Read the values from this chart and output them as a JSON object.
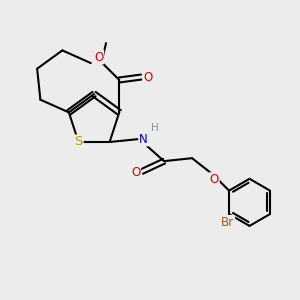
{
  "bg_color": "#ececec",
  "line_color": "#000000",
  "line_width": 1.5,
  "atom_colors": {
    "S": "#b8a000",
    "N": "#0000cc",
    "O": "#dd0000",
    "Br": "#bb5500",
    "H": "#7a9a9a",
    "C": "#000000"
  },
  "font_size": 8.5
}
